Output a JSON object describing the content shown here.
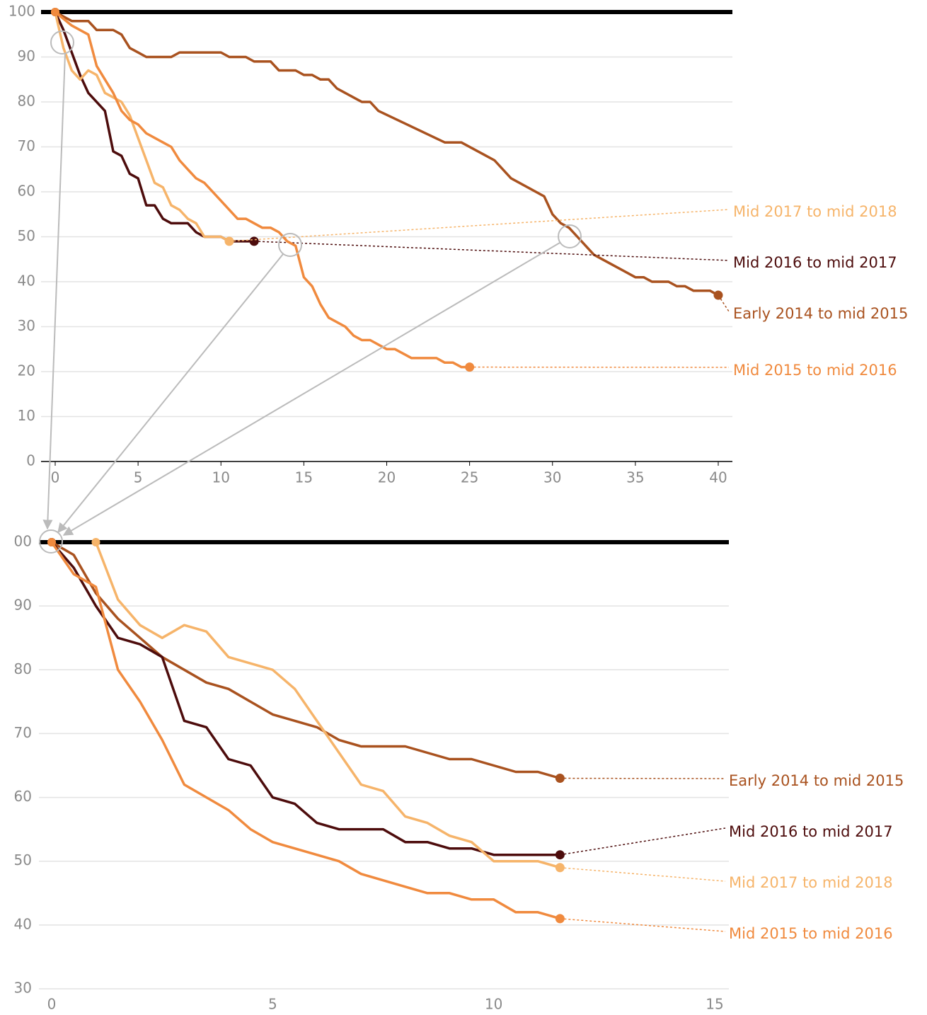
{
  "chart_data": [
    {
      "type": "line",
      "xlim": [
        0,
        40
      ],
      "ylim": [
        0,
        100
      ],
      "xticks": [
        0,
        5,
        10,
        15,
        20,
        25,
        30,
        35,
        40
      ],
      "yticks": [
        0,
        10,
        20,
        30,
        40,
        50,
        60,
        70,
        80,
        90,
        100
      ],
      "grid": true,
      "series": [
        {
          "name": "Early 2014 to mid 2015",
          "color": "#a9521f",
          "x": [
            0,
            0.5,
            1,
            2,
            2.5,
            3.5,
            4,
            4.5,
            5,
            5.5,
            7,
            7.5,
            10,
            10.5,
            11.5,
            12,
            13,
            13.5,
            14.5,
            15,
            15.5,
            16,
            16.5,
            17,
            18.5,
            19,
            19.5,
            23.5,
            24.5,
            26,
            26.5,
            27.5,
            29.5,
            30,
            30.5,
            31,
            31.5,
            32,
            32.5,
            34,
            35,
            35.5,
            36,
            37,
            37.5,
            38,
            38.5,
            39.5,
            40
          ],
          "values": [
            100,
            99,
            98,
            98,
            96,
            96,
            95,
            92,
            91,
            90,
            90,
            91,
            91,
            90,
            90,
            89,
            89,
            87,
            87,
            86,
            86,
            85,
            85,
            83,
            80,
            80,
            78,
            71,
            71,
            68,
            67,
            63,
            59,
            55,
            53,
            52,
            50,
            48,
            46,
            43,
            41,
            41,
            40,
            40,
            39,
            39,
            38,
            38,
            37
          ]
        },
        {
          "name": "Mid 2016 to mid 2017",
          "color": "#4d0c0c",
          "x": [
            0,
            0.5,
            1,
            1.5,
            2,
            3,
            3.5,
            4,
            4.5,
            5,
            5.5,
            6,
            6.5,
            7,
            8,
            8.5,
            9,
            10,
            10.5,
            12
          ],
          "values": [
            100,
            96,
            91,
            86,
            82,
            78,
            69,
            68,
            64,
            63,
            57,
            57,
            54,
            53,
            53,
            51,
            50,
            50,
            49,
            49
          ]
        },
        {
          "name": "Mid 2017 to mid 2018",
          "color": "#f6b46a",
          "x": [
            0,
            0.5,
            1,
            1.5,
            2,
            2.5,
            3,
            3.5,
            4,
            4.5,
            5,
            5.5,
            6,
            6.5,
            7,
            7.5,
            8,
            8.5,
            9,
            10,
            10.5
          ],
          "values": [
            100,
            92,
            87,
            85,
            87,
            86,
            82,
            81,
            80,
            77,
            72,
            67,
            62,
            61,
            57,
            56,
            54,
            53,
            50,
            50,
            49
          ]
        },
        {
          "name": "Mid 2015 to mid 2016",
          "color": "#f08a3e",
          "x": [
            0,
            1,
            2,
            2.5,
            3,
            3.5,
            4,
            4.5,
            5,
            5.5,
            6.5,
            7,
            7.5,
            8,
            8.5,
            9,
            10,
            11,
            11.5,
            12,
            12.5,
            13,
            13.5,
            14,
            14.5,
            15,
            15.5,
            16,
            16.5,
            17.5,
            18,
            18.5,
            19,
            20,
            20.5,
            21.5,
            23,
            23.5,
            24,
            24.5,
            25
          ],
          "values": [
            100,
            97,
            95,
            88,
            85,
            82,
            78,
            76,
            75,
            73,
            71,
            70,
            67,
            65,
            63,
            62,
            58,
            54,
            54,
            53,
            52,
            52,
            51,
            49,
            48,
            41,
            39,
            35,
            32,
            30,
            28,
            27,
            27,
            25,
            25,
            23,
            23,
            22,
            22,
            21,
            21
          ]
        }
      ]
    },
    {
      "type": "line",
      "xlim": [
        0,
        15
      ],
      "ylim": [
        30,
        100
      ],
      "xticks": [
        0,
        5,
        10,
        15
      ],
      "yticks": [
        30,
        40,
        50,
        60,
        70,
        80,
        90,
        {
          "value": 100,
          "label": "00"
        }
      ],
      "grid": true,
      "series": [
        {
          "name": "Early 2014 to mid 2015",
          "color": "#a9521f",
          "x": [
            0,
            0.5,
            1,
            1.5,
            2,
            2.5,
            3,
            3.5,
            4,
            4.5,
            5,
            6,
            6.5,
            7,
            8,
            9,
            9.5,
            10,
            10.5,
            11,
            11.5
          ],
          "values": [
            100,
            98,
            92,
            88,
            85,
            82,
            80,
            78,
            77,
            75,
            73,
            71,
            69,
            68,
            68,
            66,
            66,
            65,
            64,
            64,
            63
          ]
        },
        {
          "name": "Mid 2016 to mid 2017",
          "color": "#4d0c0c",
          "x": [
            0,
            0.5,
            1,
            1.5,
            2,
            2.5,
            3,
            3.5,
            4,
            4.5,
            5,
            5.5,
            6,
            6.5,
            7.5,
            8,
            8.5,
            9,
            9.5,
            10,
            11.5
          ],
          "values": [
            100,
            96,
            90,
            85,
            84,
            82,
            72,
            71,
            66,
            65,
            60,
            59,
            56,
            55,
            55,
            53,
            53,
            52,
            52,
            51,
            51
          ]
        },
        {
          "name": "Mid 2017 to mid 2018",
          "color": "#f6b46a",
          "x": [
            1,
            1.5,
            2,
            2.5,
            3,
            3.5,
            4,
            5,
            5.5,
            6,
            7,
            7.5,
            8,
            8.5,
            9,
            9.5,
            10,
            11,
            11.5
          ],
          "values": [
            100,
            91,
            87,
            85,
            87,
            86,
            82,
            80,
            77,
            72,
            62,
            61,
            57,
            56,
            54,
            53,
            50,
            50,
            49
          ]
        },
        {
          "name": "Mid 2015 to mid 2016",
          "color": "#f08a3e",
          "x": [
            0,
            0.5,
            1,
            1.5,
            2,
            2.5,
            3,
            4,
            4.5,
            5,
            6,
            6.5,
            7,
            8,
            8.5,
            9,
            9.5,
            10,
            10.5,
            11,
            11.5
          ],
          "values": [
            100,
            95,
            93,
            80,
            75,
            69,
            62,
            58,
            55,
            53,
            51,
            50,
            48,
            46,
            45,
            45,
            44,
            44,
            42,
            42,
            41
          ]
        }
      ]
    }
  ]
}
